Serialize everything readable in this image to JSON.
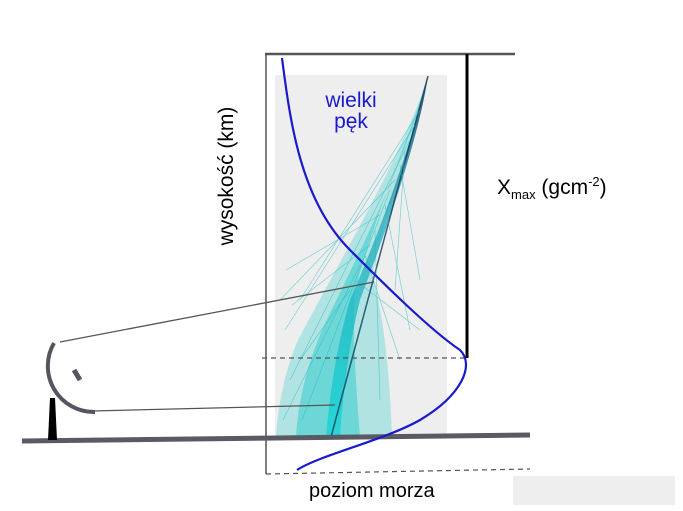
{
  "diagram": {
    "shower_label": [
      "wielki",
      "pęk"
    ],
    "xmax_label": {
      "base": "X",
      "subscript": "max",
      "unit_prefix": " (gcm",
      "superscript": "-2",
      "unit_suffix": ")"
    },
    "altitude_axis_label": "wysokość  (km)",
    "sea_level_label": "poziom morza"
  },
  "colors": {
    "profile_curve": "#1a1acc",
    "shower_core": "#0c3c5c",
    "shower_particles": "#19c8c8",
    "shower_background": "#eeeeee",
    "ground": "#5a5a64",
    "frame": "#555555"
  }
}
